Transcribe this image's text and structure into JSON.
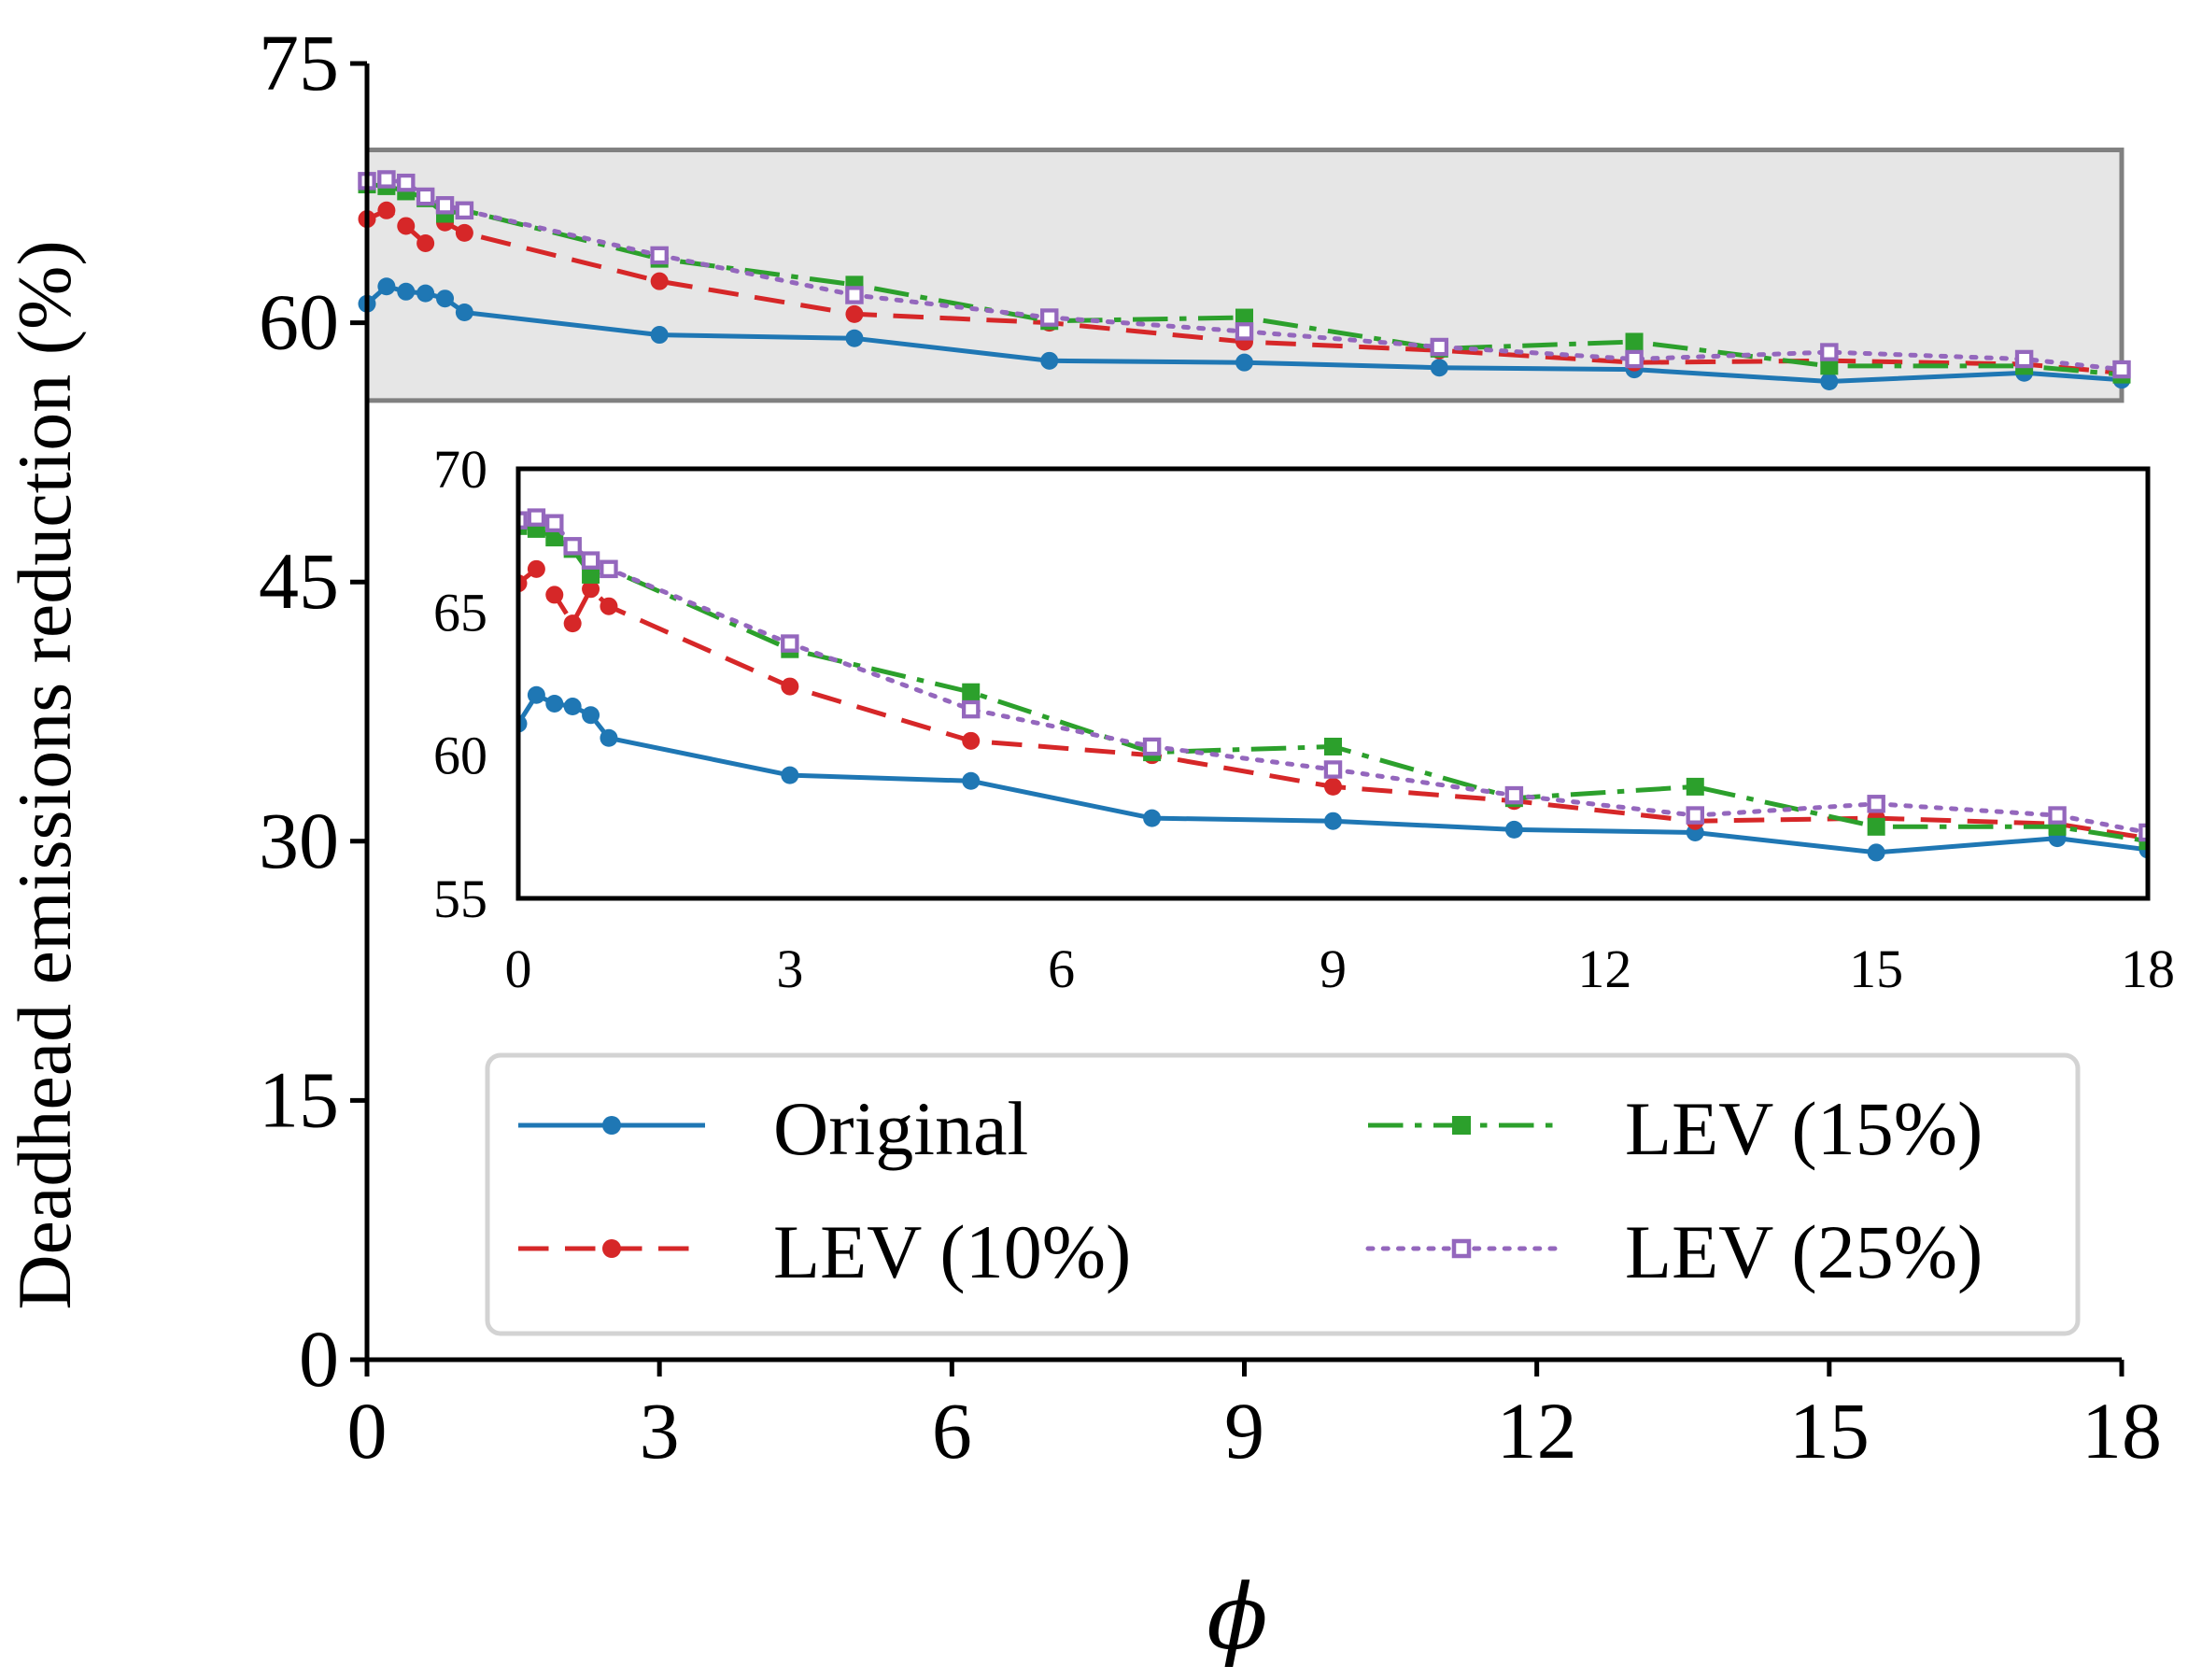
{
  "chart_data": {
    "type": "line",
    "xlabel": "ϕ",
    "ylabel": "Deadhead emissions reduction (%)",
    "xlim": [
      0,
      18
    ],
    "ylim": [
      0,
      75
    ],
    "xticks": [
      "0",
      "3",
      "6",
      "9",
      "12",
      "15",
      "18"
    ],
    "yticks": [
      "0",
      "15",
      "30",
      "45",
      "60",
      "75"
    ],
    "highlight_band": [
      55.5,
      70
    ],
    "x": [
      0,
      0.2,
      0.4,
      0.6,
      0.8,
      1,
      3,
      5,
      7,
      9,
      11,
      13,
      15,
      17,
      18
    ],
    "series": [
      {
        "name": "Original",
        "color": "#1f77b4",
        "dash": "",
        "marker": "circle",
        "values": [
          61.1,
          62.1,
          61.8,
          61.7,
          61.4,
          60.6,
          59.3,
          59.1,
          57.8,
          57.7,
          57.4,
          57.3,
          56.6,
          57.1,
          56.7
        ]
      },
      {
        "name": "LEV (10%)",
        "color": "#d62728",
        "dash": "26,14",
        "marker": "circle",
        "values": [
          66.0,
          66.5,
          65.6,
          64.6,
          65.8,
          65.2,
          62.4,
          60.5,
          60.0,
          58.9,
          58.4,
          57.7,
          57.8,
          57.6,
          57.1
        ]
      },
      {
        "name": "LEV (15%)",
        "color": "#2ca02c",
        "dash": "30,10,6,10",
        "marker": "square",
        "values": [
          68.0,
          67.9,
          67.6,
          67.2,
          66.3,
          66.5,
          63.7,
          62.2,
          60.1,
          60.3,
          58.5,
          58.9,
          57.5,
          57.5,
          57.0
        ]
      },
      {
        "name": "LEV (25%)",
        "color": "#9467bd",
        "dash": "4,9",
        "marker": "open-square",
        "values": [
          68.2,
          68.3,
          68.1,
          67.3,
          66.8,
          66.5,
          63.9,
          61.6,
          60.3,
          59.5,
          58.6,
          57.9,
          58.3,
          57.9,
          57.3
        ]
      }
    ],
    "inset": {
      "xlim": [
        0,
        18
      ],
      "ylim": [
        55,
        70
      ],
      "xticks": [
        "0",
        "3",
        "6",
        "9",
        "12",
        "15",
        "18"
      ],
      "yticks": [
        "55",
        "60",
        "65",
        "70"
      ]
    },
    "legend": {
      "position": "lower-right",
      "columns": 2
    }
  }
}
